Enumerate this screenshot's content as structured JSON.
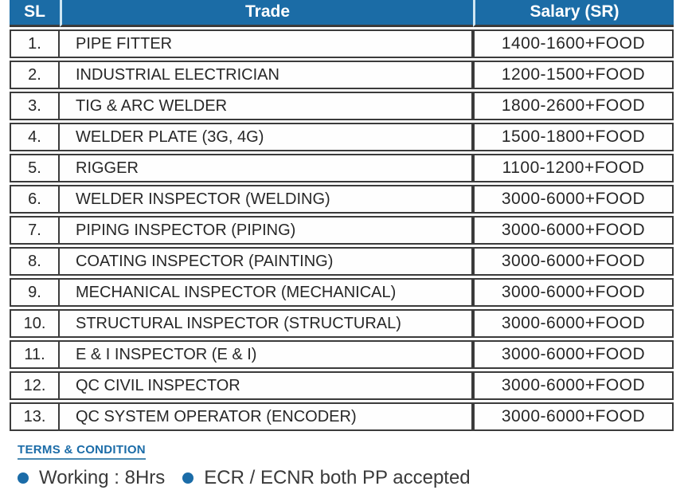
{
  "table": {
    "columns": [
      "SL",
      "Trade",
      "Salary (SR)"
    ],
    "rows": [
      {
        "sl": "1.",
        "trade": "PIPE FITTER",
        "salary": "1400-1600+FOOD"
      },
      {
        "sl": "2.",
        "trade": "INDUSTRIAL ELECTRICIAN",
        "salary": "1200-1500+FOOD"
      },
      {
        "sl": "3.",
        "trade": "TIG & ARC WELDER",
        "salary": "1800-2600+FOOD"
      },
      {
        "sl": "4.",
        "trade": "WELDER PLATE (3G, 4G)",
        "salary": "1500-1800+FOOD"
      },
      {
        "sl": "5.",
        "trade": "RIGGER",
        "salary": "1100-1200+FOOD"
      },
      {
        "sl": "6.",
        "trade": "WELDER INSPECTOR (WELDING)",
        "salary": "3000-6000+FOOD"
      },
      {
        "sl": "7.",
        "trade": "PIPING INSPECTOR (PIPING)",
        "salary": "3000-6000+FOOD"
      },
      {
        "sl": "8.",
        "trade": "COATING INSPECTOR (PAINTING)",
        "salary": "3000-6000+FOOD"
      },
      {
        "sl": "9.",
        "trade": "MECHANICAL INSPECTOR (MECHANICAL)",
        "salary": "3000-6000+FOOD"
      },
      {
        "sl": "10.",
        "trade": "STRUCTURAL INSPECTOR (STRUCTURAL)",
        "salary": "3000-6000+FOOD"
      },
      {
        "sl": "11.",
        "trade": "E & I INSPECTOR (E & I)",
        "salary": "3000-6000+FOOD"
      },
      {
        "sl": "12.",
        "trade": "QC CIVIL INSPECTOR",
        "salary": "3000-6000+FOOD"
      },
      {
        "sl": "13.",
        "trade": "QC SYSTEM OPERATOR (ENCODER)",
        "salary": "3000-6000+FOOD"
      }
    ]
  },
  "terms": {
    "heading": "TERMS & CONDITION",
    "items": [
      "Working : 8Hrs",
      "ECR / ECNR both PP accepted"
    ]
  },
  "colors": {
    "header_bg": "#1b6ca6",
    "header_divider": "#cfe6f2",
    "cell_border": "#3b3b3b",
    "body_text": "#272727",
    "accent_blue": "#1b6ca8"
  }
}
